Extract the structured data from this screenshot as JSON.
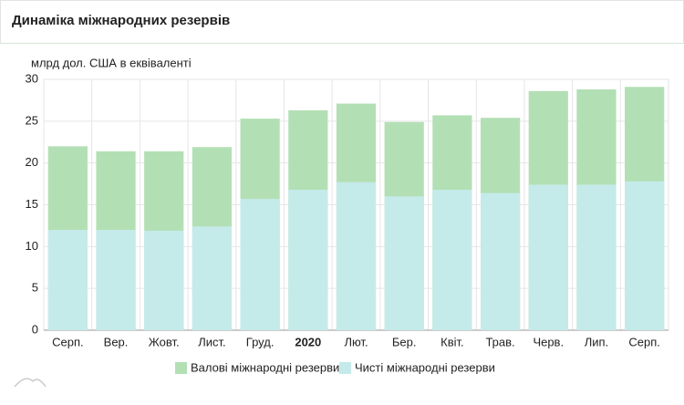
{
  "chart_data": {
    "type": "bar",
    "title": "Динаміка міжнародних резервів",
    "y_axis_label": "млрд дол. США в еквіваленті",
    "categories": [
      "Серп.",
      "Вер.",
      "Жовт.",
      "Лист.",
      "Груд.",
      "2020",
      "Лют.",
      "Бер.",
      "Квіт.",
      "Трав.",
      "Черв.",
      "Лип.",
      "Серп."
    ],
    "series": [
      {
        "name": "Валові міжнародні резерви",
        "color": "#b3dfb4",
        "values": [
          22.0,
          21.4,
          21.4,
          21.9,
          25.3,
          26.3,
          27.1,
          24.9,
          25.7,
          25.4,
          28.6,
          28.8,
          29.1
        ]
      },
      {
        "name": "Чисті міжнародні резерви",
        "color": "#c5eaea",
        "values": [
          12.0,
          12.0,
          11.9,
          12.4,
          15.7,
          16.8,
          17.7,
          16.0,
          16.8,
          16.4,
          17.4,
          17.4,
          17.8
        ]
      }
    ],
    "ylim": [
      0,
      30
    ],
    "yticks": [
      0,
      5,
      10,
      15,
      20,
      25,
      30
    ],
    "grid": true,
    "legend": "bottom"
  }
}
